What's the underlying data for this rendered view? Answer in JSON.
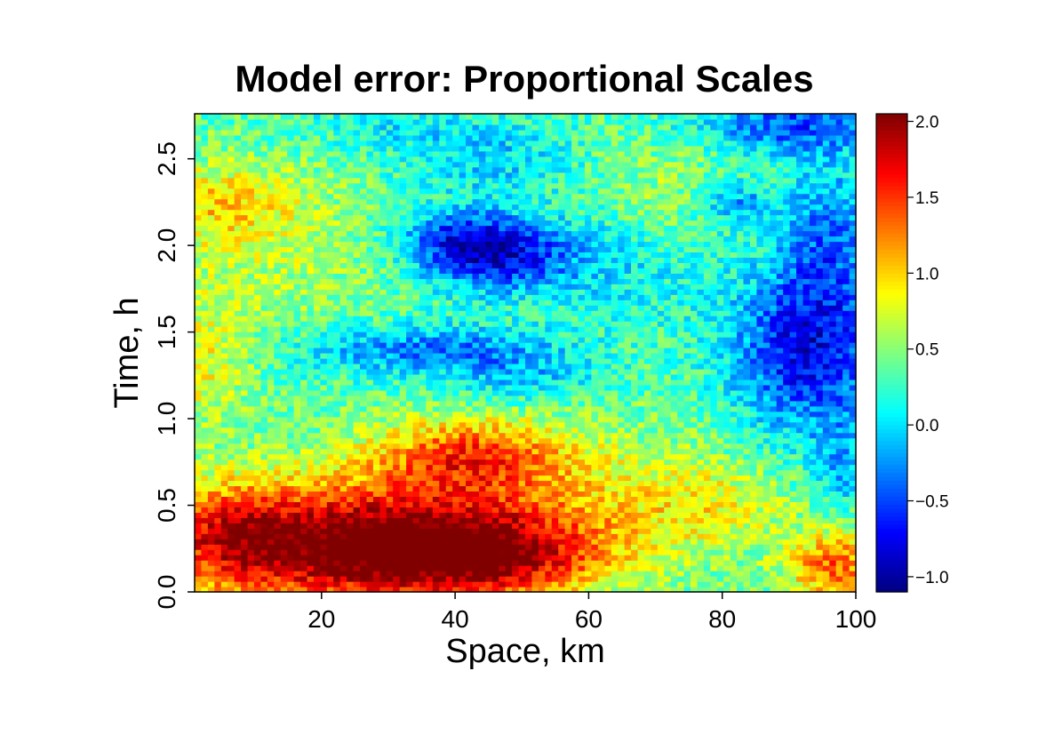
{
  "chart_data": {
    "type": "heatmap",
    "title": "Model error: Proportional Scales",
    "xlabel": "Space, km",
    "ylabel": "Time, h",
    "xlim": [
      1,
      100
    ],
    "ylim": [
      0,
      2.76
    ],
    "x_ticks": [
      20,
      40,
      60,
      80,
      100
    ],
    "x_tick_labels": [
      "20",
      "40",
      "60",
      "80",
      "100"
    ],
    "y_ticks": [
      0.0,
      0.5,
      1.0,
      1.5,
      2.0,
      2.5
    ],
    "y_tick_labels": [
      "0.0",
      "0.5",
      "1.0",
      "1.5",
      "2.0",
      "2.5"
    ],
    "grid": false,
    "colorbar": {
      "colormap": "jet",
      "range": [
        -1.1,
        2.05
      ],
      "ticks": [
        -1.0,
        -0.5,
        0.0,
        0.5,
        1.0,
        1.5,
        2.0
      ],
      "tick_labels": [
        "−1.0",
        "−0.5",
        "0.0",
        "0.5",
        "1.0",
        "1.5",
        "2.0"
      ],
      "placement": "right"
    },
    "field": {
      "x_resolution": 100,
      "t_resolution": 90,
      "background_value": 0.35,
      "features": [
        {
          "x": 20,
          "t": 0.25,
          "sx": 16,
          "st": 0.25,
          "amp": 1.25
        },
        {
          "x": 5,
          "t": 0.35,
          "sx": 7,
          "st": 0.2,
          "amp": 0.6
        },
        {
          "x": 45,
          "t": 0.2,
          "sx": 12,
          "st": 0.17,
          "amp": 1.1
        },
        {
          "x": 35,
          "t": 0.35,
          "sx": 20,
          "st": 0.25,
          "amp": 0.6
        },
        {
          "x": 42,
          "t": 0.8,
          "sx": 10,
          "st": 0.15,
          "amp": 0.9
        },
        {
          "x": 60,
          "t": 0.55,
          "sx": 20,
          "st": 0.3,
          "amp": 0.35
        },
        {
          "x": 97,
          "t": 0.15,
          "sx": 5,
          "st": 0.15,
          "amp": 1.0
        },
        {
          "x": 78,
          "t": 0.5,
          "sx": 8,
          "st": 0.15,
          "amp": 0.3
        },
        {
          "x": 2,
          "t": 1.3,
          "sx": 5,
          "st": 0.25,
          "amp": 0.45
        },
        {
          "x": 10,
          "t": 2.0,
          "sx": 15,
          "st": 0.35,
          "amp": 0.3
        },
        {
          "x": 5,
          "t": 2.25,
          "sx": 8,
          "st": 0.15,
          "amp": 0.45
        },
        {
          "x": 72,
          "t": 2.3,
          "sx": 10,
          "st": 0.25,
          "amp": 0.25
        },
        {
          "x": 46,
          "t": 1.95,
          "sx": 8,
          "st": 0.15,
          "amp": -1.1
        },
        {
          "x": 40,
          "t": 2.05,
          "sx": 6,
          "st": 0.12,
          "amp": -0.5
        },
        {
          "x": 35,
          "t": 1.4,
          "sx": 12,
          "st": 0.1,
          "amp": -0.7
        },
        {
          "x": 50,
          "t": 1.25,
          "sx": 8,
          "st": 0.12,
          "amp": -0.4
        },
        {
          "x": 93,
          "t": 1.4,
          "sx": 8,
          "st": 0.35,
          "amp": -1.1
        },
        {
          "x": 96,
          "t": 2.1,
          "sx": 5,
          "st": 0.3,
          "amp": -0.6
        },
        {
          "x": 90,
          "t": 2.7,
          "sx": 10,
          "st": 0.12,
          "amp": -0.8
        },
        {
          "x": 82,
          "t": 2.25,
          "sx": 4,
          "st": 0.1,
          "amp": -0.6
        },
        {
          "x": 45,
          "t": 2.5,
          "sx": 10,
          "st": 0.15,
          "amp": -0.4
        },
        {
          "x": 65,
          "t": 1.9,
          "sx": 10,
          "st": 0.25,
          "amp": -0.3
        },
        {
          "x": 98,
          "t": 0.7,
          "sx": 3,
          "st": 0.2,
          "amp": -0.45
        },
        {
          "x": 30,
          "t": 2.7,
          "sx": 10,
          "st": 0.1,
          "amp": -0.25
        }
      ],
      "noise_amplitude": 0.3
    }
  }
}
